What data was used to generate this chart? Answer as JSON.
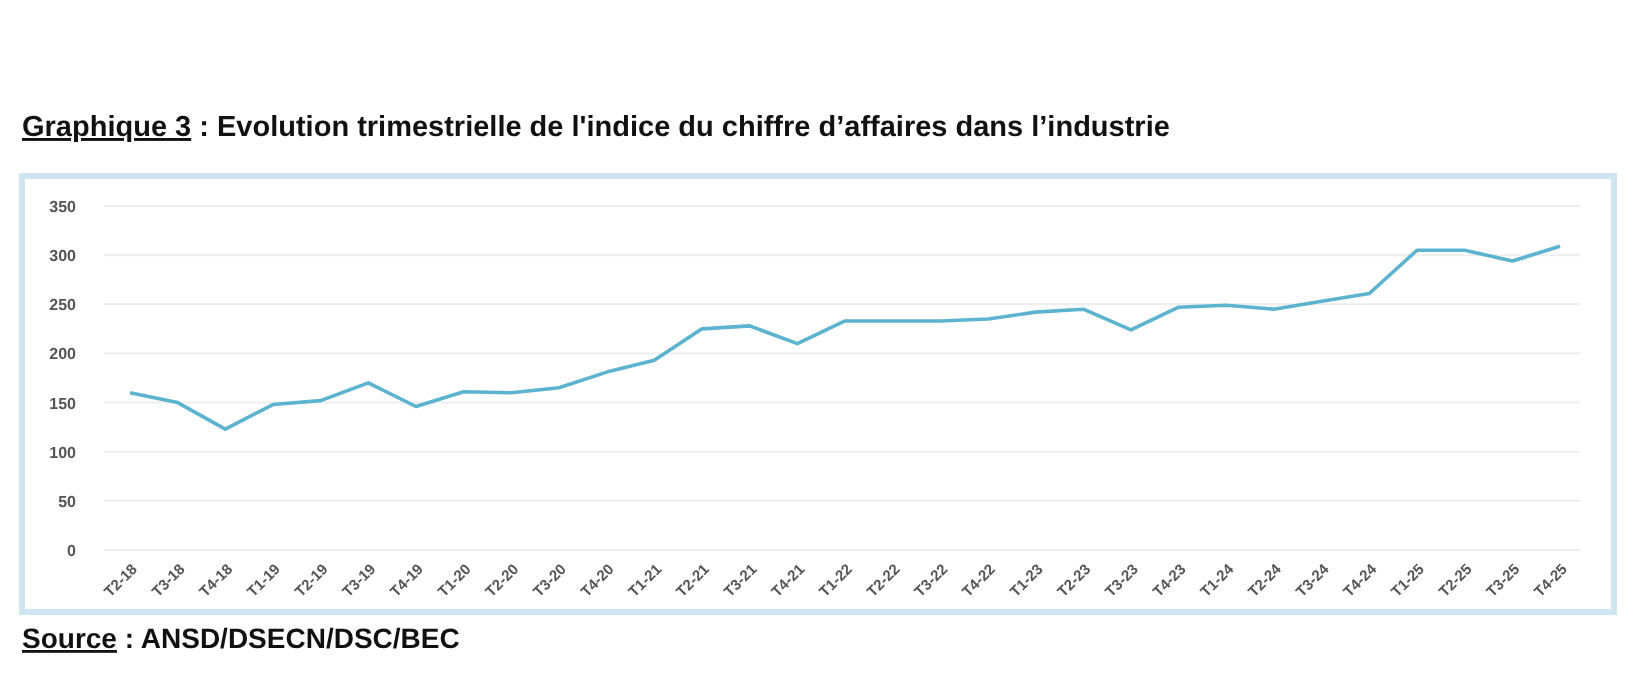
{
  "chart_data": {
    "type": "line",
    "title": "Graphique 3 : Evolution trimestrielle de l'indice du chiffre d’affaires dans l’industrie",
    "annotations": [
      "Source : ANSD/DSECN/DSC/BEC"
    ],
    "categories": [
      "T2-18",
      "T3-18",
      "T4-18",
      "T1-19",
      "T2-19",
      "T3-19",
      "T4-19",
      "T1-20",
      "T2-20",
      "T3-20",
      "T4-20",
      "T1-21",
      "T2-21",
      "T3-21",
      "T4-21",
      "T1-22",
      "T2-22",
      "T3-22",
      "T4-22",
      "T1-23",
      "T2-23",
      "T3-23",
      "T4-23",
      "T1-24",
      "T2-24",
      "T3-24",
      "T4-24",
      "T1-25",
      "T2-25",
      "T3-25",
      "T4-25"
    ],
    "series": [
      {
        "color": "#5bb3cf",
        "values": [
          160,
          150,
          123,
          148,
          152,
          170,
          146,
          161,
          160,
          165,
          181,
          193,
          225,
          228,
          210,
          233,
          233,
          233,
          235,
          242,
          245,
          224,
          247,
          249,
          245,
          253,
          261,
          305,
          305,
          294,
          309
        ]
      }
    ],
    "ylim": [
      0,
      350
    ],
    "yticks": [
      0,
      50,
      100,
      150,
      200,
      250,
      300,
      350
    ],
    "grid": "y",
    "marker": "none",
    "line_style": "solid"
  }
}
